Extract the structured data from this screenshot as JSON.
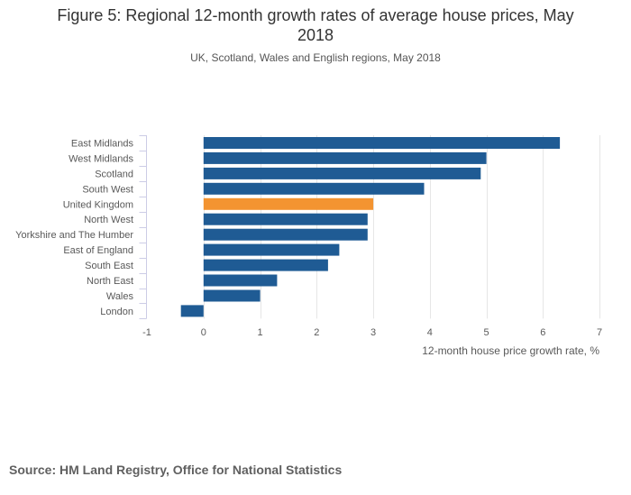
{
  "header": {
    "title_line1": "Figure 5: Regional 12-month growth rates of average house prices, May",
    "title_line2": "2018",
    "subtitle": "UK, Scotland, Wales and English regions, May 2018"
  },
  "footer": {
    "source": "Source: HM Land Registry, Office for National Statistics"
  },
  "colors": {
    "bar": "#1f5b94",
    "highlight": "#f39431",
    "grid": "#e6e6e6",
    "axis": "#cccce6",
    "label": "#595959"
  },
  "chart_data": {
    "type": "bar",
    "orientation": "horizontal",
    "title": "Figure 5: Regional 12-month growth rates of average house prices, May 2018",
    "subtitle": "UK, Scotland, Wales and English regions, May 2018",
    "xlabel": "12-month house price growth rate, %",
    "ylabel": "",
    "xlim": [
      -1,
      7
    ],
    "xticks": [
      "-1",
      "0",
      "1",
      "2",
      "3",
      "4",
      "5",
      "6",
      "7"
    ],
    "grid": true,
    "categories": [
      "East Midlands",
      "West Midlands",
      "Scotland",
      "South West",
      "United Kingdom",
      "North West",
      "Yorkshire and The Humber",
      "East of England",
      "South East",
      "North East",
      "Wales",
      "London"
    ],
    "values": [
      6.3,
      5.0,
      4.9,
      3.9,
      3.0,
      2.9,
      2.9,
      2.4,
      2.2,
      1.3,
      1.0,
      -0.4
    ],
    "highlight": "United Kingdom"
  }
}
